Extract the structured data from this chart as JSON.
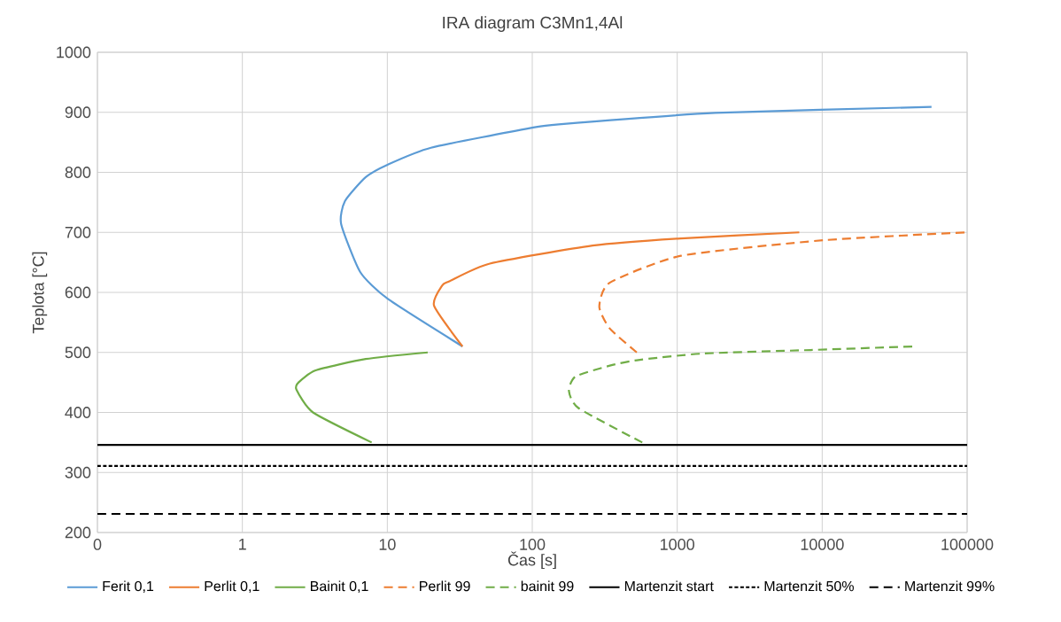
{
  "chart_data": {
    "type": "line",
    "title": "IRA diagram C3Mn1,4Al",
    "xlabel": "Čas [s]",
    "ylabel": "Teplota [°C]",
    "log": "x",
    "grid": true,
    "legend": "bottom",
    "xlim": [
      0.1,
      100000
    ],
    "xticks": [
      {
        "value": 0.1,
        "label": "0"
      },
      1,
      10,
      100,
      1000,
      10000,
      100000
    ],
    "ylim": [
      200,
      1000
    ],
    "yticks": [
      200,
      300,
      400,
      500,
      600,
      700,
      800,
      900,
      1000
    ],
    "series": [
      {
        "name": "Ferit 0,1",
        "color": "#5b9bd5",
        "line_style": "solid",
        "x": [
          33,
          10.1,
          6.5,
          4.8,
          5.1,
          7.1,
          10.1,
          20,
          98,
          152,
          1830,
          56800
        ],
        "values": [
          510,
          589,
          634,
          714,
          752,
          792,
          813,
          841,
          874,
          880,
          899,
          909
        ]
      },
      {
        "name": "Perlit 0,1",
        "color": "#ed7d31",
        "line_style": "solid",
        "x": [
          33,
          21,
          24,
          27,
          51,
          261,
          1060,
          6950
        ],
        "values": [
          510,
          578,
          612,
          619,
          648,
          678,
          690,
          700
        ]
      },
      {
        "name": "Bainit 0,1",
        "color": "#70ad47",
        "line_style": "solid",
        "x": [
          7.8,
          3.07,
          2.36,
          2.44,
          3.2,
          7.1,
          19
        ],
        "values": [
          350,
          400,
          438,
          450,
          470,
          489,
          500
        ]
      },
      {
        "name": "Perlit 99",
        "color": "#ed7d31",
        "line_style": "dashed",
        "x": [
          526,
          342,
          290,
          342,
          1060,
          10300,
          97000
        ],
        "values": [
          500,
          540,
          576,
          616,
          661,
          687,
          700
        ]
      },
      {
        "name": "bainit 99",
        "color": "#70ad47",
        "line_style": "dashed",
        "x": [
          574,
          209,
          179,
          199,
          343,
          526,
          1470,
          8300,
          42900
        ],
        "values": [
          350,
          407,
          436,
          460,
          478,
          487,
          498,
          504,
          510
        ]
      },
      {
        "name": "Martenzit start",
        "color": "#000000",
        "line_style": "solid",
        "x": [
          0.1,
          100000
        ],
        "values": [
          346,
          346
        ]
      },
      {
        "name": "Martenzit 50%",
        "color": "#000000",
        "line_style": "dotted",
        "x": [
          0.1,
          100000
        ],
        "values": [
          311,
          311
        ]
      },
      {
        "name": "Martenzit 99%",
        "color": "#000000",
        "line_style": "dashed",
        "x": [
          0.1,
          100000
        ],
        "values": [
          231,
          231
        ]
      }
    ]
  }
}
